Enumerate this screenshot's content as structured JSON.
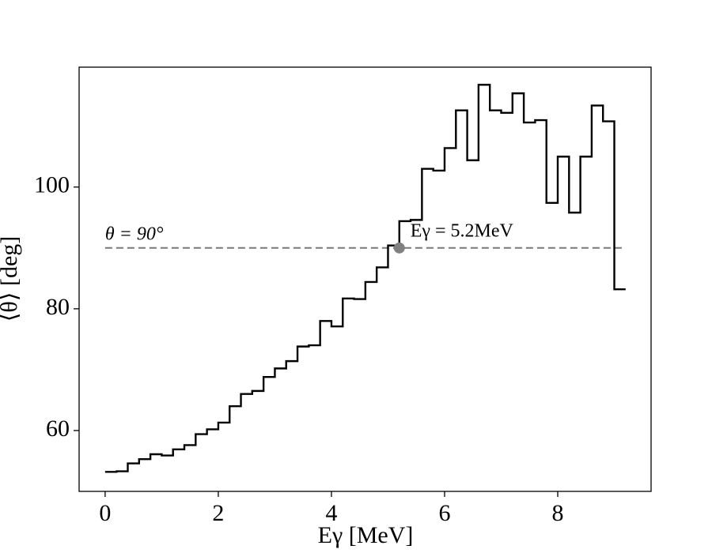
{
  "chart_data": {
    "type": "step",
    "x_label": "Eγ [MeV]",
    "y_label": "⟨θ⟩ [deg]",
    "x": [
      0,
      0.2,
      0.4,
      0.6,
      0.8,
      1.0,
      1.2,
      1.4,
      1.6,
      1.8,
      2.0,
      2.2,
      2.4,
      2.6,
      2.8,
      3.0,
      3.2,
      3.4,
      3.6,
      3.8,
      4.0,
      4.2,
      4.4,
      4.6,
      4.8,
      5.0,
      5.2,
      5.4,
      5.6,
      5.8,
      6.0,
      6.2,
      6.4,
      6.6,
      6.8,
      7.0,
      7.2,
      7.4,
      7.6,
      7.8,
      8.0,
      8.2,
      8.4,
      8.6,
      8.8,
      9.0,
      9.2
    ],
    "values": [
      53.2,
      53.3,
      54.6,
      55.3,
      56.1,
      55.9,
      56.9,
      57.6,
      59.4,
      60.2,
      61.3,
      64.0,
      66.0,
      66.5,
      68.8,
      70.2,
      71.4,
      73.8,
      74.0,
      78.0,
      77.1,
      81.7,
      81.6,
      84.4,
      86.8,
      90.4,
      94.4,
      94.6,
      103.0,
      102.7,
      106.4,
      112.6,
      104.4,
      116.8,
      112.6,
      112.2,
      115.4,
      110.6,
      111.0,
      97.4,
      105.0,
      95.8,
      105.0,
      113.4,
      110.8,
      83.2,
      83.2
    ],
    "color": "#000000",
    "reference_line": {
      "y": 90,
      "label": "θ = 90°",
      "color": "#808080"
    },
    "marker": {
      "x": 5.2,
      "y": 90,
      "label": "Eγ = 5.2MeV",
      "color": "#808080"
    },
    "xlim": [
      -0.46,
      9.65
    ],
    "ylim": [
      50,
      119.7
    ],
    "xticks": [
      0,
      2,
      4,
      6,
      8
    ],
    "yticks": [
      60,
      80,
      100
    ]
  }
}
